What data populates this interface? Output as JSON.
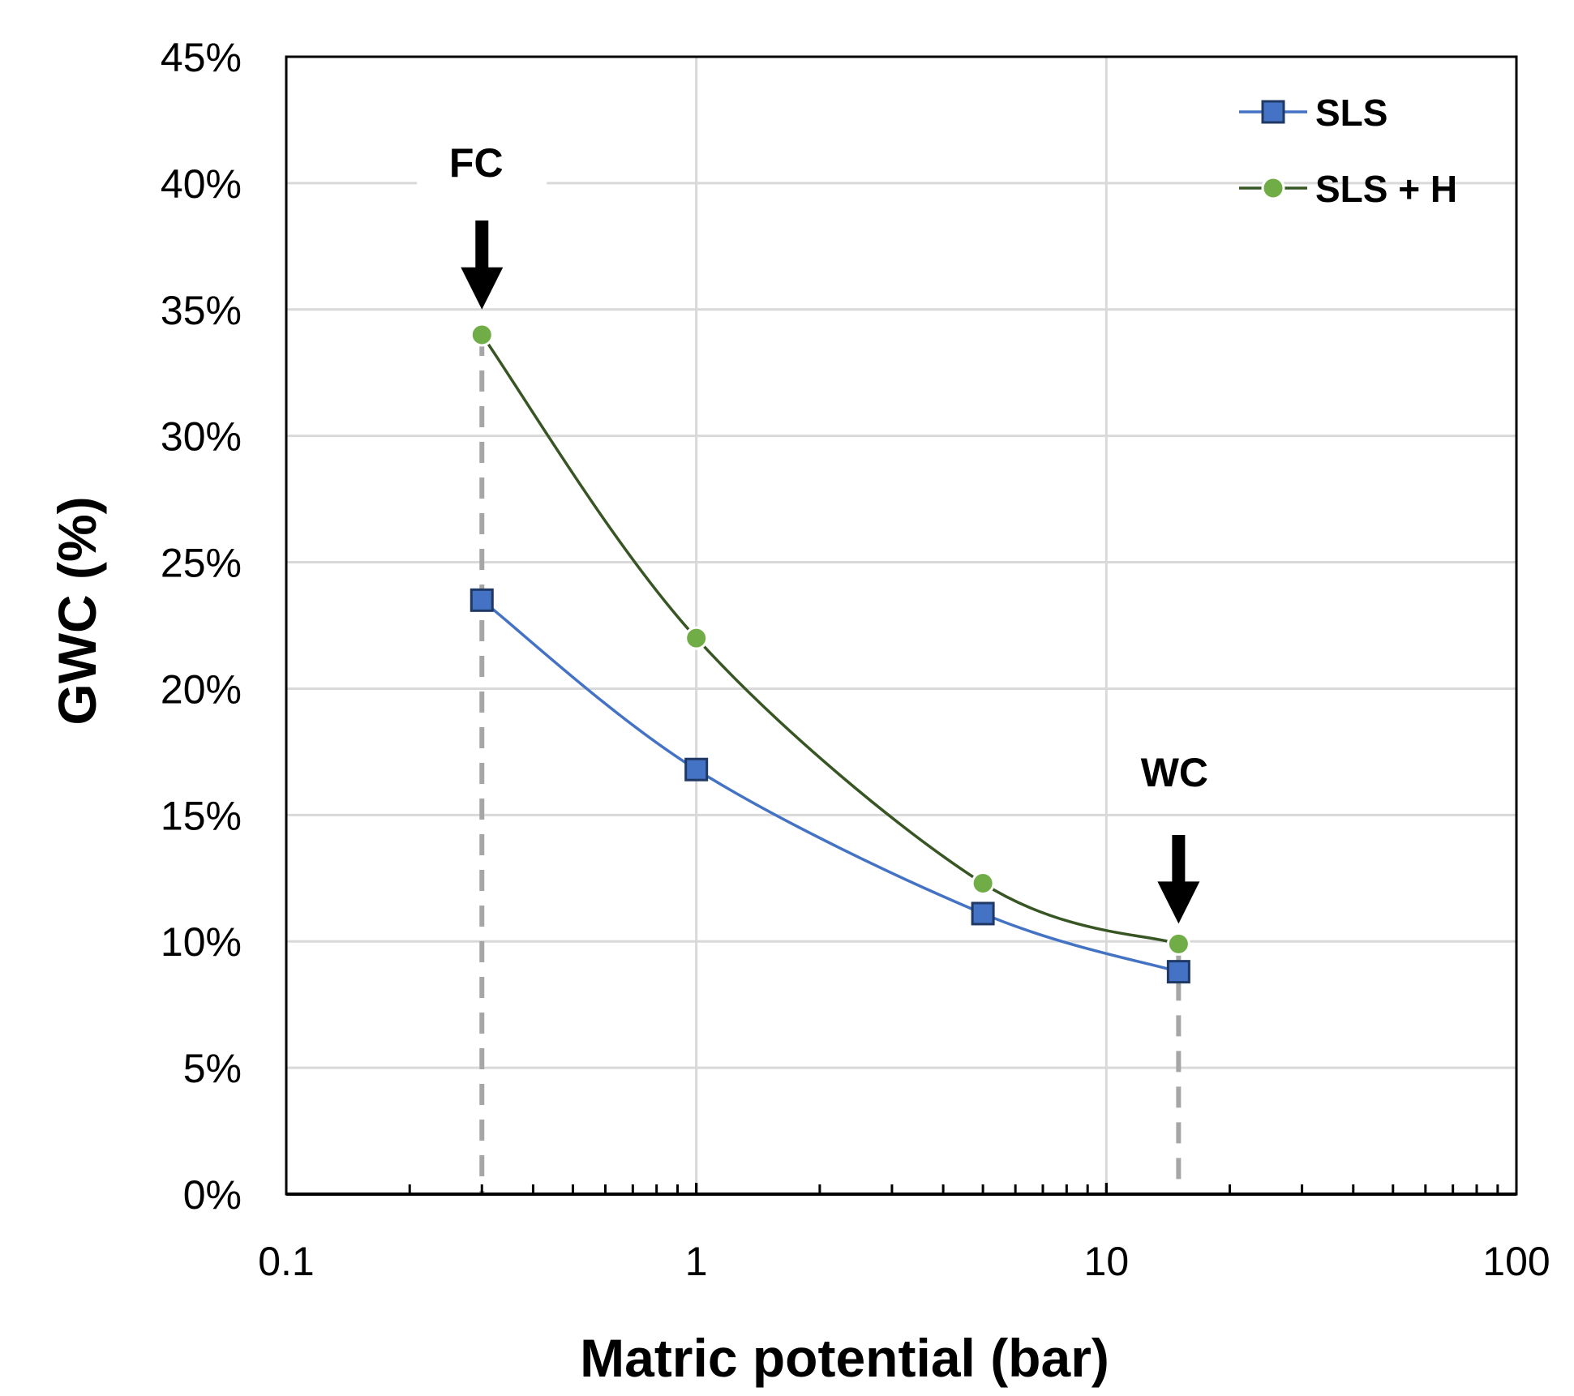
{
  "chart_data": {
    "type": "line",
    "x_scale": "log",
    "xlabel": "Matric potential (bar)",
    "ylabel": "GWC (%)",
    "xlim": [
      0.1,
      100
    ],
    "ylim": [
      0,
      45
    ],
    "x_ticks": [
      {
        "value": 0.1,
        "label": "0.1"
      },
      {
        "value": 1,
        "label": "1"
      },
      {
        "value": 10,
        "label": "10"
      },
      {
        "value": 100,
        "label": "100"
      }
    ],
    "y_ticks": [
      {
        "value": 0,
        "label": "0%"
      },
      {
        "value": 5,
        "label": "5%"
      },
      {
        "value": 10,
        "label": "10%"
      },
      {
        "value": 15,
        "label": "15%"
      },
      {
        "value": 20,
        "label": "20%"
      },
      {
        "value": 25,
        "label": "25%"
      },
      {
        "value": 30,
        "label": "30%"
      },
      {
        "value": 35,
        "label": "35%"
      },
      {
        "value": 40,
        "label": "40%"
      },
      {
        "value": 45,
        "label": "45%"
      }
    ],
    "grid": true,
    "legend": "top-right",
    "series": [
      {
        "name": "SLS",
        "marker": "square",
        "color": "#4472c4",
        "fill": "#4472c4",
        "line_color": "#4472c4",
        "x": [
          0.3,
          1,
          5,
          15
        ],
        "y": [
          23.5,
          16.8,
          11.1,
          8.8
        ]
      },
      {
        "name": "SLS + H",
        "marker": "circle",
        "color": "#70ad47",
        "fill": "#70ad47",
        "line_color": "#375623",
        "x": [
          0.3,
          1,
          5,
          15
        ],
        "y": [
          34.0,
          22.0,
          12.3,
          9.9
        ]
      }
    ],
    "annotations": [
      {
        "text": "FC",
        "x": 0.3,
        "arrow_to_y": 35
      },
      {
        "text": "WC",
        "x": 15,
        "arrow_to_y": 10.7
      }
    ],
    "reference_lines": [
      {
        "x": 0.3,
        "style": "dashed"
      },
      {
        "x": 15,
        "style": "dashed"
      }
    ]
  }
}
